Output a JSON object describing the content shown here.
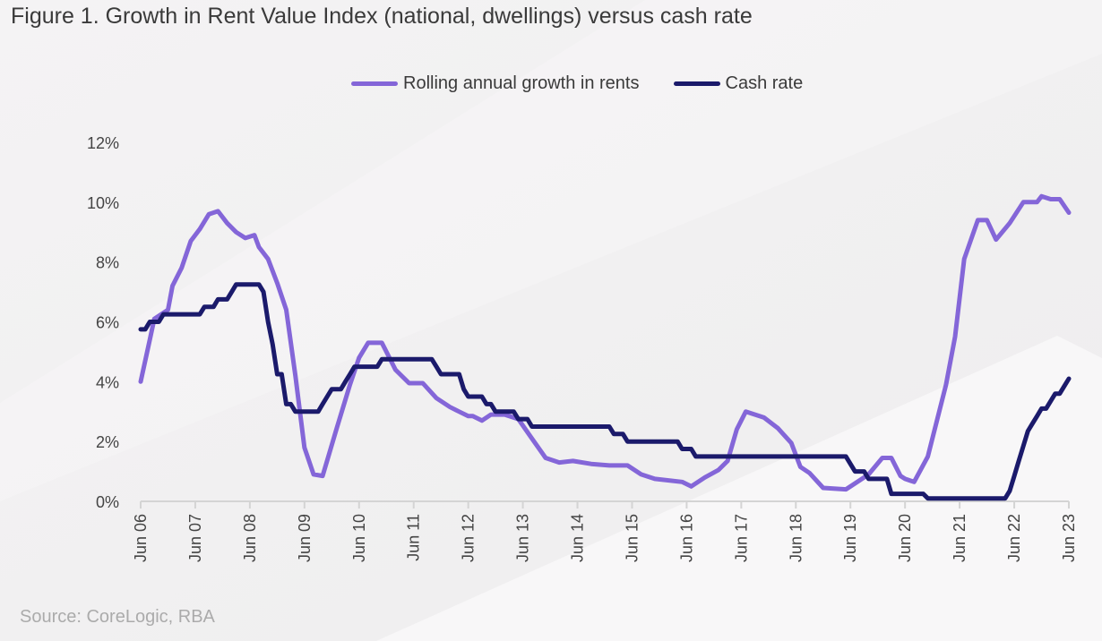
{
  "chart_data": {
    "type": "line",
    "title": "Figure 1. Growth in Rent Value Index (national, dwellings) versus cash rate",
    "source": "Source: CoreLogic, RBA",
    "xlabel": "",
    "ylabel": "",
    "xlim": [
      "2006-06",
      "2023-06"
    ],
    "ylim": [
      0,
      12
    ],
    "y_ticks": [
      "0%",
      "2%",
      "4%",
      "6%",
      "8%",
      "10%",
      "12%"
    ],
    "x_ticks": [
      "Jun 06",
      "Jun 07",
      "Jun 08",
      "Jun 09",
      "Jun 10",
      "Jun 11",
      "Jun 12",
      "Jun 13",
      "Jun 14",
      "Jun 15",
      "Jun 16",
      "Jun 17",
      "Jun 18",
      "Jun 19",
      "Jun 20",
      "Jun 21",
      "Jun 22",
      "Jun 23"
    ],
    "grid": false,
    "legend_position": "top-center",
    "series": [
      {
        "name": "Rolling annual growth in rents",
        "color": "#8466d8",
        "points": [
          [
            "2006-06",
            4.0
          ],
          [
            "2006-08",
            5.4
          ],
          [
            "2006-09",
            6.1
          ],
          [
            "2006-12",
            6.4
          ],
          [
            "2007-01",
            7.2
          ],
          [
            "2007-03",
            7.8
          ],
          [
            "2007-05",
            8.7
          ],
          [
            "2007-07",
            9.1
          ],
          [
            "2007-09",
            9.6
          ],
          [
            "2007-11",
            9.7
          ],
          [
            "2008-01",
            9.3
          ],
          [
            "2008-03",
            9.0
          ],
          [
            "2008-05",
            8.8
          ],
          [
            "2008-07",
            8.9
          ],
          [
            "2008-08",
            8.5
          ],
          [
            "2008-10",
            8.1
          ],
          [
            "2008-12",
            7.3
          ],
          [
            "2009-02",
            6.4
          ],
          [
            "2009-04",
            4.2
          ],
          [
            "2009-06",
            1.8
          ],
          [
            "2009-08",
            0.9
          ],
          [
            "2009-10",
            0.85
          ],
          [
            "2010-01",
            2.4
          ],
          [
            "2010-04",
            3.9
          ],
          [
            "2010-06",
            4.8
          ],
          [
            "2010-08",
            5.3
          ],
          [
            "2010-11",
            5.3
          ],
          [
            "2011-02",
            4.4
          ],
          [
            "2011-05",
            3.95
          ],
          [
            "2011-08",
            3.95
          ],
          [
            "2011-11",
            3.45
          ],
          [
            "2012-02",
            3.15
          ],
          [
            "2012-04",
            3.0
          ],
          [
            "2012-06",
            2.85
          ],
          [
            "2012-07",
            2.85
          ],
          [
            "2012-09",
            2.7
          ],
          [
            "2012-11",
            2.9
          ],
          [
            "2013-02",
            2.9
          ],
          [
            "2013-05",
            2.75
          ],
          [
            "2013-08",
            2.1
          ],
          [
            "2013-11",
            1.45
          ],
          [
            "2014-02",
            1.3
          ],
          [
            "2014-05",
            1.35
          ],
          [
            "2014-09",
            1.25
          ],
          [
            "2015-01",
            1.2
          ],
          [
            "2015-05",
            1.2
          ],
          [
            "2015-08",
            0.9
          ],
          [
            "2015-11",
            0.75
          ],
          [
            "2016-05",
            0.65
          ],
          [
            "2016-07",
            0.5
          ],
          [
            "2016-10",
            0.8
          ],
          [
            "2017-01",
            1.05
          ],
          [
            "2017-03",
            1.35
          ],
          [
            "2017-05",
            2.4
          ],
          [
            "2017-07",
            3.0
          ],
          [
            "2017-11",
            2.8
          ],
          [
            "2018-02",
            2.45
          ],
          [
            "2018-05",
            1.95
          ],
          [
            "2018-07",
            1.15
          ],
          [
            "2018-09",
            0.95
          ],
          [
            "2018-12",
            0.45
          ],
          [
            "2019-05",
            0.4
          ],
          [
            "2019-07",
            0.6
          ],
          [
            "2019-10",
            0.9
          ],
          [
            "2020-01",
            1.45
          ],
          [
            "2020-03",
            1.45
          ],
          [
            "2020-05",
            0.85
          ],
          [
            "2020-06",
            0.75
          ],
          [
            "2020-08",
            0.65
          ],
          [
            "2020-11",
            1.5
          ],
          [
            "2021-03",
            3.9
          ],
          [
            "2021-05",
            5.5
          ],
          [
            "2021-07",
            8.1
          ],
          [
            "2021-10",
            9.4
          ],
          [
            "2021-12",
            9.4
          ],
          [
            "2022-02",
            8.75
          ],
          [
            "2022-05",
            9.3
          ],
          [
            "2022-08",
            10.0
          ],
          [
            "2022-11",
            10.0
          ],
          [
            "2022-12",
            10.2
          ],
          [
            "2023-02",
            10.1
          ],
          [
            "2023-04",
            10.1
          ],
          [
            "2023-06",
            9.65
          ]
        ]
      },
      {
        "name": "Cash rate",
        "color": "#1b1a6b",
        "step_changes": [
          [
            "2006-06",
            5.75
          ],
          [
            "2006-08",
            6.0
          ],
          [
            "2006-11",
            6.25
          ],
          [
            "2007-08",
            6.5
          ],
          [
            "2007-11",
            6.75
          ],
          [
            "2008-02",
            7.0
          ],
          [
            "2008-03",
            7.25
          ],
          [
            "2008-09",
            7.0
          ],
          [
            "2008-10",
            6.0
          ],
          [
            "2008-11",
            5.25
          ],
          [
            "2008-12",
            4.25
          ],
          [
            "2009-02",
            3.25
          ],
          [
            "2009-04",
            3.0
          ],
          [
            "2009-10",
            3.25
          ],
          [
            "2009-11",
            3.5
          ],
          [
            "2009-12",
            3.75
          ],
          [
            "2010-03",
            4.0
          ],
          [
            "2010-04",
            4.25
          ],
          [
            "2010-05",
            4.5
          ],
          [
            "2010-11",
            4.75
          ],
          [
            "2011-11",
            4.5
          ],
          [
            "2011-12",
            4.25
          ],
          [
            "2012-05",
            3.75
          ],
          [
            "2012-06",
            3.5
          ],
          [
            "2012-10",
            3.25
          ],
          [
            "2012-12",
            3.0
          ],
          [
            "2013-05",
            2.75
          ],
          [
            "2013-08",
            2.5
          ],
          [
            "2015-02",
            2.25
          ],
          [
            "2015-05",
            2.0
          ],
          [
            "2016-05",
            1.75
          ],
          [
            "2016-08",
            1.5
          ],
          [
            "2019-06",
            1.25
          ],
          [
            "2019-07",
            1.0
          ],
          [
            "2019-10",
            0.75
          ],
          [
            "2020-03",
            0.25
          ],
          [
            "2020-11",
            0.1
          ],
          [
            "2022-05",
            0.35
          ],
          [
            "2022-06",
            0.85
          ],
          [
            "2022-07",
            1.35
          ],
          [
            "2022-08",
            1.85
          ],
          [
            "2022-09",
            2.35
          ],
          [
            "2022-10",
            2.6
          ],
          [
            "2022-11",
            2.85
          ],
          [
            "2022-12",
            3.1
          ],
          [
            "2023-02",
            3.35
          ],
          [
            "2023-03",
            3.6
          ],
          [
            "2023-05",
            3.85
          ],
          [
            "2023-06",
            4.1
          ]
        ]
      }
    ]
  }
}
